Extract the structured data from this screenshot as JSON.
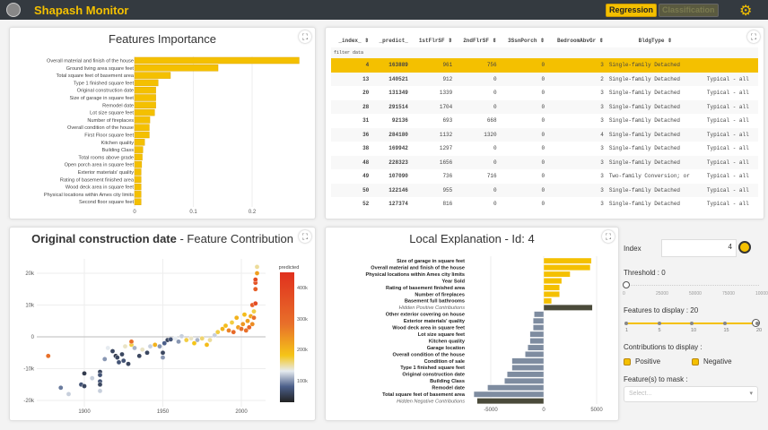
{
  "header": {
    "title": "Shapash Monitor",
    "regression": "Regression",
    "classification": "Classification"
  },
  "importance": {
    "title": "Features Importance",
    "ticks": [
      "0",
      "0.1",
      "0.2"
    ],
    "features": [
      [
        "Overall material and finish of the house",
        0.28
      ],
      [
        "Ground living area square feet",
        0.142
      ],
      [
        "Total square feet of basement area",
        0.061
      ],
      [
        "Type 1 finished square feet",
        0.04
      ],
      [
        "Original construction date",
        0.036
      ],
      [
        "Size of garage in square feet",
        0.036
      ],
      [
        "Remodel date",
        0.036
      ],
      [
        "Lot size square feet",
        0.034
      ],
      [
        "Number of fireplaces",
        0.026
      ],
      [
        "Overall condition of the house",
        0.025
      ],
      [
        "First Floor square feet",
        0.025
      ],
      [
        "Kitchen quality",
        0.017
      ],
      [
        "Building Class",
        0.014
      ],
      [
        "Total rooms above grade",
        0.013
      ],
      [
        "Open porch area in square feet",
        0.012
      ],
      [
        "Exterior materials' quality",
        0.011
      ],
      [
        "Rating of basement finished area",
        0.011
      ],
      [
        "Wood deck area in square feet",
        0.011
      ],
      [
        "Physical locations within Ames city limits",
        0.011
      ],
      [
        "Second floor square feet",
        0.011
      ]
    ]
  },
  "table": {
    "headers": [
      "_index_ ⇕",
      "_predict_",
      "1stFlrSF ⇕",
      "2ndFlrSF ⇕",
      "3SsnPorch ⇕",
      "BedroomAbvGr ⇕",
      "BldgType ⇕",
      ""
    ],
    "filter": "filter data",
    "rows": [
      [
        "4",
        "163889",
        "961",
        "756",
        "0",
        "3",
        "Single-family Detached",
        ""
      ],
      [
        "13",
        "140521",
        "912",
        "0",
        "0",
        "2",
        "Single-family Detached",
        "Typical - all"
      ],
      [
        "20",
        "131349",
        "1339",
        "0",
        "0",
        "3",
        "Single-family Detached",
        "Typical - all"
      ],
      [
        "28",
        "291514",
        "1704",
        "0",
        "0",
        "3",
        "Single-family Detached",
        "Typical - all"
      ],
      [
        "31",
        "92136",
        "693",
        "668",
        "0",
        "3",
        "Single-family Detached",
        "Typical - all"
      ],
      [
        "36",
        "284180",
        "1132",
        "1320",
        "0",
        "4",
        "Single-family Detached",
        "Typical - all"
      ],
      [
        "38",
        "169942",
        "1297",
        "0",
        "0",
        "3",
        "Single-family Detached",
        "Typical - all"
      ],
      [
        "48",
        "228323",
        "1656",
        "0",
        "0",
        "3",
        "Single-family Detached",
        "Typical - all"
      ],
      [
        "49",
        "107090",
        "736",
        "716",
        "0",
        "3",
        "Two-family Conversion; or",
        "Typical - all"
      ],
      [
        "50",
        "122146",
        "955",
        "0",
        "0",
        "3",
        "Single-family Detached",
        "Typical - all"
      ],
      [
        "52",
        "127374",
        "816",
        "0",
        "0",
        "3",
        "Single-family Detached",
        "Typical - all"
      ]
    ]
  },
  "contrib": {
    "title_bold": "Original construction date",
    "title_rest": " - Feature Contribution",
    "xticks": [
      "1900",
      "1950",
      "2000"
    ],
    "yticks": [
      "20k",
      "10k",
      "0",
      "-10k",
      "-20k"
    ],
    "colorbar_title": "predicted",
    "colorbar_ticks": [
      "400k",
      "300k",
      "200k",
      "100k"
    ],
    "points": [
      [
        1877,
        -6000,
        300
      ],
      [
        1885,
        -16000,
        120
      ],
      [
        1890,
        -18000,
        150
      ],
      [
        1900,
        -11500,
        80
      ],
      [
        1898,
        -15000,
        100
      ],
      [
        1900,
        -15500,
        90
      ],
      [
        1905,
        -13000,
        150
      ],
      [
        1910,
        -11000,
        90
      ],
      [
        1910,
        -12000,
        100
      ],
      [
        1910,
        -14000,
        100
      ],
      [
        1910,
        -15000,
        90
      ],
      [
        1910,
        -17000,
        150
      ],
      [
        1913,
        -7000,
        130
      ],
      [
        1915,
        -3500,
        160
      ],
      [
        1918,
        -4500,
        90
      ],
      [
        1920,
        -6000,
        80
      ],
      [
        1921,
        -6500,
        90
      ],
      [
        1922,
        -8000,
        100
      ],
      [
        1924,
        -5500,
        90
      ],
      [
        1925,
        -7500,
        100
      ],
      [
        1926,
        -3000,
        170
      ],
      [
        1928,
        -8500,
        90
      ],
      [
        1930,
        -2500,
        200
      ],
      [
        1930,
        -1500,
        300
      ],
      [
        1932,
        -3500,
        140
      ],
      [
        1935,
        -6000,
        90
      ],
      [
        1937,
        -4000,
        170
      ],
      [
        1940,
        -5000,
        90
      ],
      [
        1942,
        -3000,
        150
      ],
      [
        1945,
        -2500,
        230
      ],
      [
        1948,
        -3000,
        130
      ],
      [
        1950,
        -5000,
        90
      ],
      [
        1950,
        -6500,
        130
      ],
      [
        1951,
        -2000,
        110
      ],
      [
        1953,
        -1000,
        90
      ],
      [
        1955,
        -800,
        100
      ],
      [
        1958,
        -500,
        160
      ],
      [
        1960,
        -1500,
        130
      ],
      [
        1962,
        200,
        150
      ],
      [
        1965,
        -1000,
        200
      ],
      [
        1968,
        -500,
        170
      ],
      [
        1970,
        -2000,
        210
      ],
      [
        1972,
        -1000,
        140
      ],
      [
        1975,
        -500,
        190
      ],
      [
        1978,
        -2500,
        220
      ],
      [
        1980,
        -1000,
        180
      ],
      [
        1983,
        500,
        150
      ],
      [
        1985,
        1500,
        200
      ],
      [
        1988,
        2500,
        230
      ],
      [
        1990,
        3500,
        220
      ],
      [
        1992,
        2000,
        280
      ],
      [
        1994,
        4500,
        200
      ],
      [
        1995,
        1500,
        320
      ],
      [
        1997,
        6000,
        230
      ],
      [
        1998,
        3000,
        250
      ],
      [
        2000,
        2500,
        300
      ],
      [
        2001,
        4000,
        260
      ],
      [
        2002,
        7000,
        220
      ],
      [
        2003,
        2000,
        300
      ],
      [
        2004,
        5000,
        250
      ],
      [
        2005,
        3000,
        330
      ],
      [
        2006,
        6500,
        240
      ],
      [
        2007,
        4000,
        270
      ],
      [
        2007,
        10000,
        350
      ],
      [
        2008,
        8000,
        200
      ],
      [
        2009,
        10500,
        400
      ],
      [
        2009,
        15000,
        350
      ],
      [
        2009,
        17000,
        380
      ],
      [
        2009,
        18000,
        400
      ],
      [
        2010,
        20000,
        250
      ],
      [
        2010,
        22000,
        180
      ],
      [
        2008,
        6000,
        300
      ]
    ]
  },
  "local": {
    "title": "Local Explanation - Id: 4",
    "xticks": [
      "-5000",
      "0",
      "5000"
    ],
    "bars": [
      [
        "Size of garage in square feet",
        4500
      ],
      [
        "Overall material and finish of the house",
        4400
      ],
      [
        "Physical locations within Ames city limits",
        2500
      ],
      [
        "Year Sold",
        1700
      ],
      [
        "Rating of basement finished area",
        1500
      ],
      [
        "Number of fireplaces",
        1500
      ],
      [
        "Basement full bathrooms",
        750
      ],
      [
        "Hidden Positive Contributions",
        4600
      ],
      [
        "Other exterior covering on house",
        -900
      ],
      [
        "Exterior materials' quality",
        -1000
      ],
      [
        "Wood deck area in square feet",
        -1000
      ],
      [
        "Lot size square feet",
        -1300
      ],
      [
        "Kitchen quality",
        -1300
      ],
      [
        "Garage location",
        -1500
      ],
      [
        "Overall condition of the house",
        -1750
      ],
      [
        "Condition of sale",
        -3000
      ],
      [
        "Type 1 finished square feet",
        -3000
      ],
      [
        "Original construction date",
        -3450
      ],
      [
        "Building Class",
        -3700
      ],
      [
        "Remodel date",
        -5300
      ],
      [
        "Total square feet of basement area",
        -6600
      ],
      [
        "Hidden Negative Contributions",
        -6300
      ]
    ]
  },
  "controls": {
    "index_label": "Index",
    "index_value": "4",
    "threshold_label": "Threshold : 0",
    "threshold_ticks": [
      "0",
      "25000",
      "50000",
      "75000",
      "100000"
    ],
    "threshold_value": 0,
    "features_label": "Features to display : 20",
    "features_ticks": [
      "1",
      "5",
      "10",
      "15",
      "20"
    ],
    "features_value": 20,
    "contrib_label": "Contributions to display :",
    "positive": "Positive",
    "negative": "Negative",
    "mask_label": "Feature(s) to mask :",
    "mask_placeholder": "Select..."
  },
  "colors": {
    "accent": "#f4c000",
    "header": "#343a40",
    "negative": "#7e8ca0",
    "hidden": "#4a4a3a"
  }
}
